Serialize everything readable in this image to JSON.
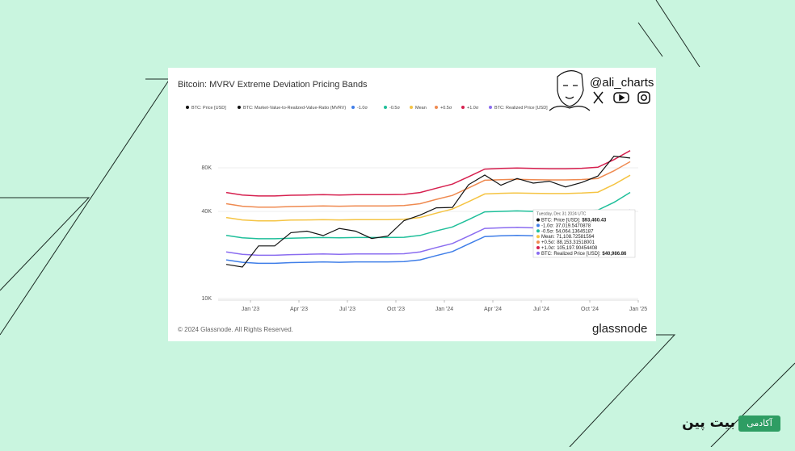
{
  "header": {
    "handle": "@ali_charts"
  },
  "chart_data": {
    "type": "line",
    "title": "Bitcoin: MVRV Extreme Deviation Pricing Bands",
    "log_scale": true,
    "x": [
      "2022-11",
      "2022-12",
      "2023-01",
      "2023-02",
      "2023-03",
      "2023-04",
      "2023-05",
      "2023-06",
      "2023-07",
      "2023-08",
      "2023-09",
      "2023-10",
      "2023-11",
      "2023-12",
      "2024-01",
      "2024-02",
      "2024-03",
      "2024-04",
      "2024-05",
      "2024-06",
      "2024-07",
      "2024-08",
      "2024-09",
      "2024-10",
      "2024-11",
      "2024-12"
    ],
    "xlim": [
      "2022-11",
      "2025-01"
    ],
    "xticks": [
      {
        "value": "2023-01",
        "label": "Jan '23"
      },
      {
        "value": "2023-04",
        "label": "Apr '23"
      },
      {
        "value": "2023-07",
        "label": "Jul '23"
      },
      {
        "value": "2023-10",
        "label": "Oct '23"
      },
      {
        "value": "2024-01",
        "label": "Jan '24"
      },
      {
        "value": "2024-04",
        "label": "Apr '24"
      },
      {
        "value": "2024-07",
        "label": "Jul '24"
      },
      {
        "value": "2024-10",
        "label": "Oct '24"
      },
      {
        "value": "2025-01",
        "label": "Jan '25"
      }
    ],
    "ylim": [
      10000,
      100000
    ],
    "yticks": [
      {
        "value": 10000,
        "label": "10K"
      },
      {
        "value": 40000,
        "label": "40K"
      },
      {
        "value": 80000,
        "label": "80K"
      }
    ],
    "series": [
      {
        "name": "BTC: Price [USD]",
        "color": "#111111",
        "values": [
          17200,
          16500,
          23100,
          23100,
          28500,
          29200,
          27200,
          30500,
          29200,
          26000,
          27000,
          34500,
          37700,
          42300,
          42600,
          61200,
          71300,
          60600,
          67500,
          62700,
          64600,
          59000,
          63300,
          70200,
          96400,
          93460
        ]
      },
      {
        "name": "-1.0σ",
        "color": "#3f7ee8",
        "values": [
          18500,
          17800,
          17500,
          17500,
          17700,
          17800,
          17900,
          17800,
          17900,
          17900,
          17900,
          18000,
          18500,
          19800,
          21100,
          23800,
          26800,
          27100,
          27300,
          27100,
          27000,
          27000,
          27200,
          27600,
          31200,
          37020
        ]
      },
      {
        "name": "-0.5σ",
        "color": "#1fbf9a",
        "values": [
          27300,
          26300,
          25900,
          25900,
          26100,
          26300,
          26400,
          26300,
          26400,
          26400,
          26400,
          26500,
          27300,
          29300,
          31200,
          35100,
          39700,
          40000,
          40300,
          40000,
          39900,
          39900,
          40200,
          40800,
          46200,
          54060
        ]
      },
      {
        "name": "Mean",
        "color": "#f5c443",
        "values": [
          36300,
          34900,
          34400,
          34400,
          34800,
          34900,
          35100,
          34900,
          35100,
          35100,
          35100,
          35300,
          36300,
          38900,
          41500,
          46700,
          52800,
          53300,
          53600,
          53300,
          53100,
          53100,
          53500,
          54300,
          61400,
          71110
        ]
      },
      {
        "name": "+0.5σ",
        "color": "#ef8a50",
        "values": [
          45200,
          43400,
          42800,
          42800,
          43200,
          43400,
          43600,
          43400,
          43600,
          43600,
          43600,
          43900,
          45200,
          48400,
          51600,
          58100,
          65600,
          66200,
          66700,
          66200,
          66000,
          66000,
          66400,
          67500,
          76300,
          88150
        ]
      },
      {
        "name": "+1.0σ",
        "color": "#d6204f",
        "values": [
          54000,
          51900,
          51100,
          51100,
          51700,
          51900,
          52200,
          51900,
          52200,
          52200,
          52200,
          52400,
          54000,
          57800,
          61700,
          69400,
          78400,
          79200,
          79700,
          79200,
          78900,
          78900,
          79400,
          80700,
          91200,
          105200
        ]
      },
      {
        "name": "BTC: Realized Price [USD]",
        "color": "#8a6cf0",
        "values": [
          21000,
          20200,
          19900,
          19900,
          20100,
          20200,
          20300,
          20200,
          20300,
          20300,
          20300,
          20400,
          21000,
          22500,
          24000,
          27000,
          30500,
          30800,
          31000,
          30800,
          30700,
          30700,
          30900,
          31400,
          35500,
          40990
        ]
      }
    ],
    "legend_only": [
      {
        "name": "BTC: Market-Value-to-Realized-Value-Ratio (MVRV)",
        "color": "#111111"
      }
    ],
    "tooltip": {
      "title": "Tuesday, Dec 31 2024 UTC",
      "rows": [
        {
          "label": "BTC: Price [USD]:",
          "value": "$93,460.43",
          "color": "#111111"
        },
        {
          "label": "-1.0σ:",
          "value": "37,019.5470878",
          "color": "#3f7ee8"
        },
        {
          "label": "-0.5σ:",
          "value": "54,064.13645187",
          "color": "#1fbf9a"
        },
        {
          "label": "Mean:",
          "value": "71,108.72581594",
          "color": "#f5c443"
        },
        {
          "label": "+0.5σ:",
          "value": "88,153.31518001",
          "color": "#ef8a50"
        },
        {
          "label": "+1.0σ:",
          "value": "105,197.90454408",
          "color": "#d6204f"
        },
        {
          "label": "BTC: Realized Price [USD]:",
          "value": "$40,986.86",
          "color": "#8a6cf0"
        }
      ]
    }
  },
  "footer": {
    "copyright": "© 2024 Glassnode. All Rights Reserved.",
    "brand": "glassnode"
  },
  "watermark": {
    "badge": "آکادمی",
    "name": "بیت پین"
  }
}
